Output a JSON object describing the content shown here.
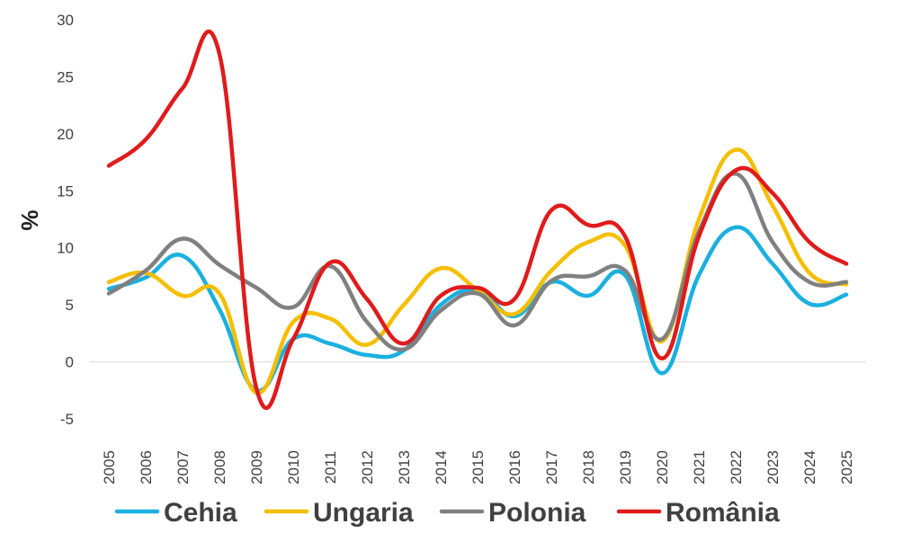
{
  "chart_data": {
    "type": "line",
    "title": "",
    "xlabel": "",
    "ylabel": "%",
    "ylim": [
      -5,
      30
    ],
    "yticks": [
      "30",
      "25",
      "20",
      "15",
      "10",
      "5",
      "0",
      "-5"
    ],
    "ytick_values": [
      30,
      25,
      20,
      15,
      10,
      5,
      0,
      -5
    ],
    "categories": [
      "2005",
      "2006",
      "2007",
      "2008",
      "2009",
      "2010",
      "2011",
      "2012",
      "2013",
      "2014",
      "2015",
      "2016",
      "2017",
      "2018",
      "2019",
      "2020",
      "2021",
      "2022",
      "2023",
      "2024",
      "2025"
    ],
    "grid": false,
    "legend_position": "bottom",
    "series": [
      {
        "name": "Cehia",
        "color": "#1AB0E0",
        "values": [
          6.4,
          7.4,
          9.3,
          4.6,
          -2.5,
          2.0,
          1.6,
          0.6,
          1.0,
          5.0,
          6.3,
          4.0,
          7.0,
          5.8,
          7.6,
          -1.0,
          7.6,
          11.8,
          8.6,
          5.1,
          5.9
        ]
      },
      {
        "name": "Ungaria",
        "color": "#F5BE00",
        "values": [
          7.0,
          7.8,
          5.8,
          6.0,
          -2.7,
          3.5,
          3.8,
          1.5,
          5.0,
          8.2,
          6.3,
          4.2,
          8.0,
          10.5,
          10.2,
          1.8,
          12.5,
          18.6,
          13.7,
          7.8,
          6.8
        ]
      },
      {
        "name": "Polonia",
        "color": "#808080",
        "values": [
          6.0,
          8.0,
          10.8,
          8.5,
          6.5,
          4.8,
          8.4,
          3.5,
          1.1,
          4.5,
          6.0,
          3.2,
          7.1,
          7.5,
          8.0,
          2.0,
          11.4,
          16.5,
          10.5,
          7.0,
          7.0
        ]
      },
      {
        "name": "România",
        "color": "#E01B1B",
        "values": [
          17.2,
          19.5,
          24.0,
          27.0,
          -2.3,
          2.0,
          8.7,
          5.5,
          1.6,
          5.8,
          6.5,
          5.5,
          13.3,
          12.0,
          11.0,
          0.3,
          11.0,
          16.8,
          14.8,
          10.5,
          8.6
        ]
      }
    ]
  }
}
